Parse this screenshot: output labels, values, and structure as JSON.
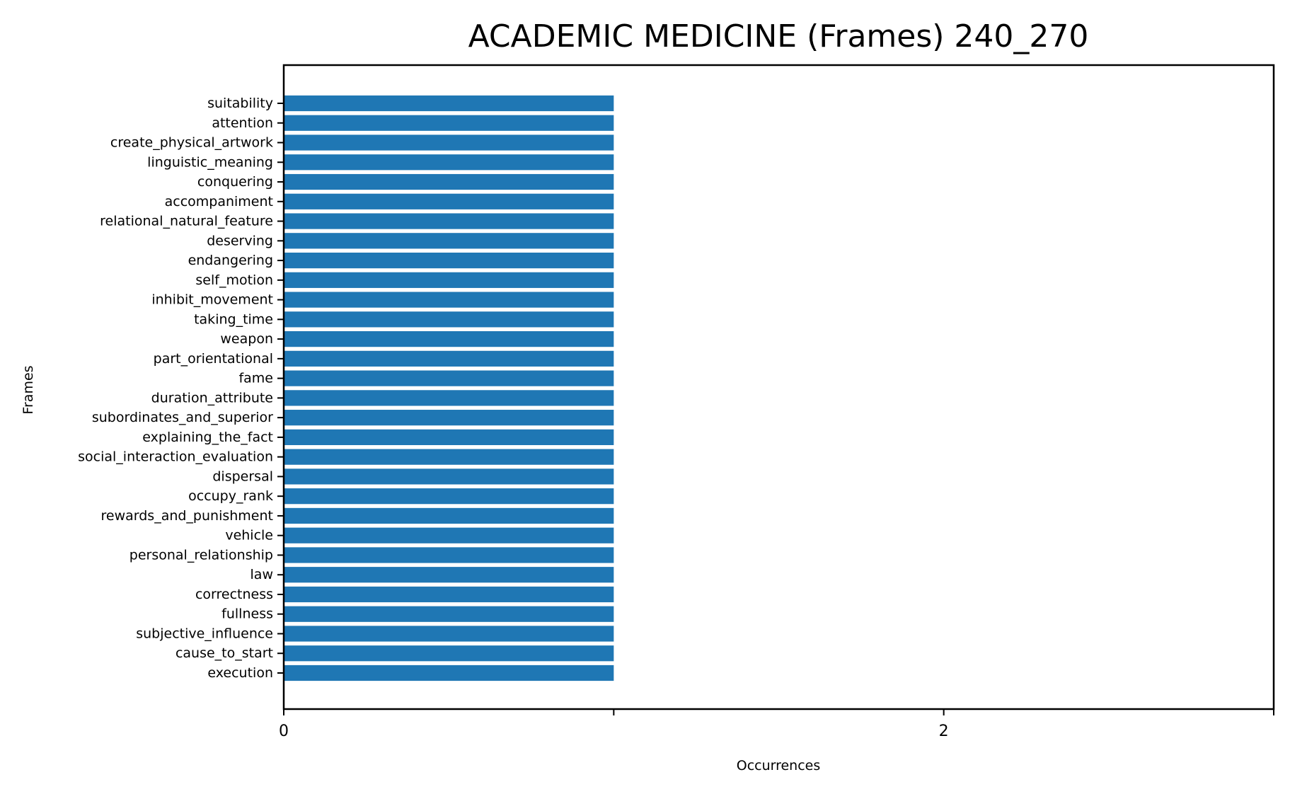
{
  "chart_data": {
    "type": "bar",
    "orientation": "horizontal",
    "title": "ACADEMIC MEDICINE (Frames) 240_270",
    "xlabel": "Occurrences",
    "ylabel": "Frames",
    "xlim": [
      0,
      3
    ],
    "x_ticks": [
      0,
      1,
      2,
      3
    ],
    "x_tick_labels": [
      "0",
      "",
      "2",
      ""
    ],
    "grid": false,
    "legend": "none",
    "bar_color": "#1f77b4",
    "categories": [
      "suitability",
      "attention",
      "create_physical_artwork",
      "linguistic_meaning",
      "conquering",
      "accompaniment",
      "relational_natural_feature",
      "deserving",
      "endangering",
      "self_motion",
      "inhibit_movement",
      "taking_time",
      "weapon",
      "part_orientational",
      "fame",
      "duration_attribute",
      "subordinates_and_superior",
      "explaining_the_fact",
      "social_interaction_evaluation",
      "dispersal",
      "occupy_rank",
      "rewards_and_punishment",
      "vehicle",
      "personal_relationship",
      "law",
      "correctness",
      "fullness",
      "subjective_influence",
      "cause_to_start",
      "execution"
    ],
    "values": [
      1,
      1,
      1,
      1,
      1,
      1,
      1,
      1,
      1,
      1,
      1,
      1,
      1,
      1,
      1,
      1,
      1,
      1,
      1,
      1,
      1,
      1,
      1,
      1,
      1,
      1,
      1,
      1,
      1,
      1
    ]
  }
}
